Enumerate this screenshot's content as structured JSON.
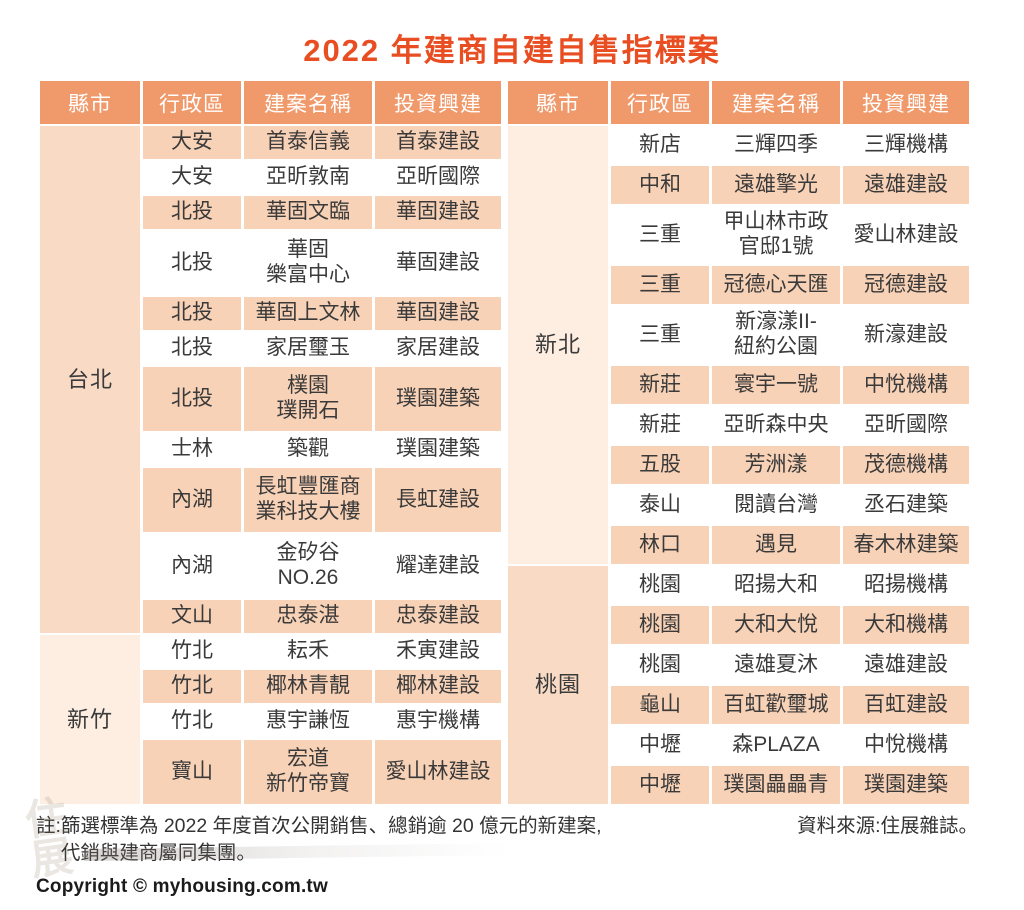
{
  "title": "2022 年建商自建自售指標案",
  "colors": {
    "title": "#e84e22",
    "header_bg": "#f09a6c",
    "header_text": "#ffffff",
    "row_peach": "#f8d2b7",
    "row_white": "#ffffff",
    "county_dark": "#f9dbc5",
    "county_light": "#fdeee1",
    "text": "#3a3a3a"
  },
  "columns": [
    "縣市",
    "行政區",
    "建案名稱",
    "投資興建"
  ],
  "tables": [
    {
      "name": "left-table",
      "first_stripe": "peach",
      "groups": [
        {
          "county": "台北",
          "shade": "dark",
          "rows": [
            {
              "district": "大安",
              "project": "首泰信義",
              "builder": "首泰建設"
            },
            {
              "district": "大安",
              "project": "亞昕敦南",
              "builder": "亞昕國際"
            },
            {
              "district": "北投",
              "project": "華固文臨",
              "builder": "華固建設"
            },
            {
              "district": "北投",
              "project": "華固\n樂富中心",
              "builder": "華固建設"
            },
            {
              "district": "北投",
              "project": "華固上文林",
              "builder": "華固建設"
            },
            {
              "district": "北投",
              "project": "家居璽玉",
              "builder": "家居建設"
            },
            {
              "district": "北投",
              "project": "樸園\n璞開石",
              "builder": "璞園建築"
            },
            {
              "district": "士林",
              "project": "築觀",
              "builder": "璞園建築"
            },
            {
              "district": "內湖",
              "project": "長虹豐匯商\n業科技大樓",
              "builder": "長虹建設"
            },
            {
              "district": "內湖",
              "project": "金矽谷\nNO.26",
              "builder": "耀達建設"
            },
            {
              "district": "文山",
              "project": "忠泰湛",
              "builder": "忠泰建設"
            }
          ]
        },
        {
          "county": "新竹",
          "shade": "light",
          "rows": [
            {
              "district": "竹北",
              "project": "耘禾",
              "builder": "禾寅建設"
            },
            {
              "district": "竹北",
              "project": "椰林青靚",
              "builder": "椰林建設"
            },
            {
              "district": "竹北",
              "project": "惠宇謙恆",
              "builder": "惠宇機構"
            },
            {
              "district": "寶山",
              "project": "宏道\n新竹帝寶",
              "builder": "愛山林建設"
            }
          ]
        }
      ]
    },
    {
      "name": "right-table",
      "first_stripe": "white",
      "groups": [
        {
          "county": "新北",
          "shade": "light",
          "rows": [
            {
              "district": "新店",
              "project": "三輝四季",
              "builder": "三輝機構"
            },
            {
              "district": "中和",
              "project": "遠雄擎光",
              "builder": "遠雄建設"
            },
            {
              "district": "三重",
              "project": "甲山林市政\n官邸1號",
              "builder": "愛山林建設"
            },
            {
              "district": "三重",
              "project": "冠德心天匯",
              "builder": "冠德建設"
            },
            {
              "district": "三重",
              "project": "新濠漾II-\n紐約公園",
              "builder": "新濠建設"
            },
            {
              "district": "新莊",
              "project": "寰宇一號",
              "builder": "中悅機構"
            },
            {
              "district": "新莊",
              "project": "亞昕森中央",
              "builder": "亞昕國際"
            },
            {
              "district": "五股",
              "project": "芳洲漾",
              "builder": "茂德機構"
            },
            {
              "district": "泰山",
              "project": "閱讀台灣",
              "builder": "丞石建築"
            },
            {
              "district": "林口",
              "project": "遇見",
              "builder": "春木林建築"
            }
          ]
        },
        {
          "county": "桃園",
          "shade": "dark",
          "rows": [
            {
              "district": "桃園",
              "project": "昭揚大和",
              "builder": "昭揚機構"
            },
            {
              "district": "桃園",
              "project": "大和大悅",
              "builder": "大和機構"
            },
            {
              "district": "桃園",
              "project": "遠雄夏沐",
              "builder": "遠雄建設"
            },
            {
              "district": "龜山",
              "project": "百虹歡璽城",
              "builder": "百虹建設"
            },
            {
              "district": "中壢",
              "project": "森PLAZA",
              "builder": "中悅機構"
            },
            {
              "district": "中壢",
              "project": "璞園畾畾青",
              "builder": "璞園建築"
            }
          ]
        }
      ]
    }
  ],
  "chart_data": {
    "type": "table",
    "title": "2022 年建商自建自售指標案",
    "columns": [
      "縣市",
      "行政區",
      "建案名稱",
      "投資興建"
    ],
    "rows": [
      [
        "台北",
        "大安",
        "首泰信義",
        "首泰建設"
      ],
      [
        "台北",
        "大安",
        "亞昕敦南",
        "亞昕國際"
      ],
      [
        "台北",
        "北投",
        "華固文臨",
        "華固建設"
      ],
      [
        "台北",
        "北投",
        "華固樂富中心",
        "華固建設"
      ],
      [
        "台北",
        "北投",
        "華固上文林",
        "華固建設"
      ],
      [
        "台北",
        "北投",
        "家居璽玉",
        "家居建設"
      ],
      [
        "台北",
        "北投",
        "樸園璞開石",
        "璞園建築"
      ],
      [
        "台北",
        "士林",
        "築觀",
        "璞園建築"
      ],
      [
        "台北",
        "內湖",
        "長虹豐匯商業科技大樓",
        "長虹建設"
      ],
      [
        "台北",
        "內湖",
        "金矽谷NO.26",
        "耀達建設"
      ],
      [
        "台北",
        "文山",
        "忠泰湛",
        "忠泰建設"
      ],
      [
        "新竹",
        "竹北",
        "耘禾",
        "禾寅建設"
      ],
      [
        "新竹",
        "竹北",
        "椰林青靚",
        "椰林建設"
      ],
      [
        "新竹",
        "竹北",
        "惠宇謙恆",
        "惠宇機構"
      ],
      [
        "新竹",
        "寶山",
        "宏道新竹帝寶",
        "愛山林建設"
      ],
      [
        "新北",
        "新店",
        "三輝四季",
        "三輝機構"
      ],
      [
        "新北",
        "中和",
        "遠雄擎光",
        "遠雄建設"
      ],
      [
        "新北",
        "三重",
        "甲山林市政官邸1號",
        "愛山林建設"
      ],
      [
        "新北",
        "三重",
        "冠德心天匯",
        "冠德建設"
      ],
      [
        "新北",
        "三重",
        "新濠漾II-紐約公園",
        "新濠建設"
      ],
      [
        "新北",
        "新莊",
        "寰宇一號",
        "中悅機構"
      ],
      [
        "新北",
        "新莊",
        "亞昕森中央",
        "亞昕國際"
      ],
      [
        "新北",
        "五股",
        "芳洲漾",
        "茂德機構"
      ],
      [
        "新北",
        "泰山",
        "閱讀台灣",
        "丞石建築"
      ],
      [
        "新北",
        "林口",
        "遇見",
        "春木林建築"
      ],
      [
        "桃園",
        "桃園",
        "昭揚大和",
        "昭揚機構"
      ],
      [
        "桃園",
        "桃園",
        "大和大悅",
        "大和機構"
      ],
      [
        "桃園",
        "桃園",
        "遠雄夏沐",
        "遠雄建設"
      ],
      [
        "桃園",
        "龜山",
        "百虹歡璽城",
        "百虹建設"
      ],
      [
        "桃園",
        "中壢",
        "森PLAZA",
        "中悅機構"
      ],
      [
        "桃園",
        "中壢",
        "璞園畾畾青",
        "璞園建築"
      ]
    ]
  },
  "footnote": {
    "prefix": "註:",
    "line1": "篩選標準為 2022 年度首次公開銷售、總銷逾 20 億元的新建案,",
    "line2": "代銷與建商屬同集團。"
  },
  "source": "資料來源:住展雜誌。",
  "copyright": "Copyright © myhousing.com.tw",
  "watermark": "住展"
}
